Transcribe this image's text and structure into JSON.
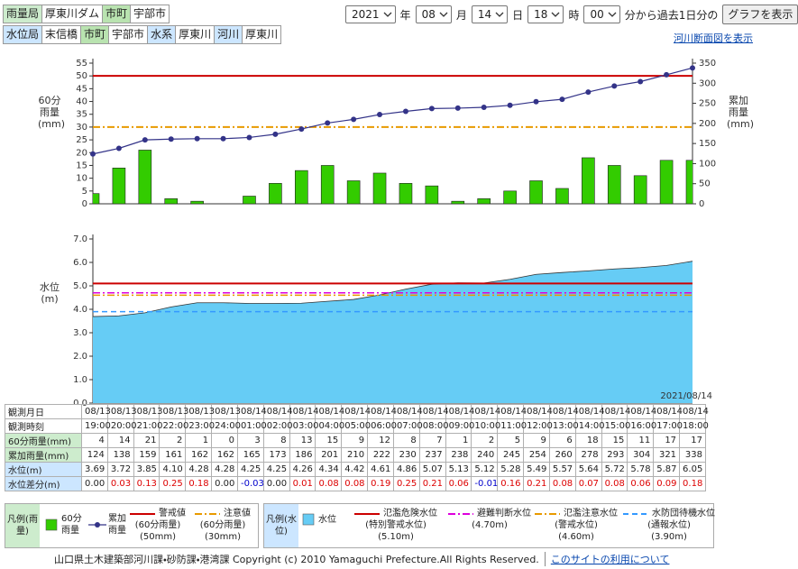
{
  "header": {
    "rain_station": [
      {
        "label": "雨量局",
        "value": "厚東川ダム",
        "color": "#cdeccd"
      },
      {
        "label": "市町",
        "value": "宇部市",
        "color": "#b9e3b0"
      }
    ],
    "water_station": [
      {
        "label": "水位局",
        "value": "末信橋",
        "color": "#cce6ff"
      },
      {
        "label": "市町",
        "value": "宇部市",
        "color": "#b9e3b0"
      },
      {
        "label": "水系",
        "value": "厚東川",
        "color": "#cce6ff"
      },
      {
        "label": "河川",
        "value": "厚東川",
        "color": "#cce6ff"
      }
    ],
    "selectors": [
      {
        "value": "2021",
        "unit": "年"
      },
      {
        "value": "08",
        "unit": "月"
      },
      {
        "value": "14",
        "unit": "日"
      },
      {
        "value": "18",
        "unit": "時"
      },
      {
        "value": "00",
        "unit": "分から過去1日分の"
      }
    ],
    "button": "グラフを表示",
    "link": "河川断面図を表示"
  },
  "chart_data": [
    {
      "type": "combo",
      "ylabel": "60分雨量(mm)",
      "y2label": "累加雨量(mm)",
      "ylim": [
        0,
        55
      ],
      "yticks": [
        0,
        5,
        10,
        15,
        20,
        25,
        30,
        35,
        40,
        45,
        50,
        55
      ],
      "y2lim": [
        0,
        350
      ],
      "y2ticks": [
        0,
        50,
        100,
        150,
        200,
        250,
        300,
        350
      ],
      "series": [
        {
          "name": "60分雨量",
          "type": "bar",
          "color": "#33cc00",
          "values": [
            4,
            14,
            21,
            2,
            1,
            0,
            3,
            8,
            13,
            15,
            9,
            12,
            8,
            7,
            1,
            2,
            5,
            9,
            6,
            18,
            15,
            11,
            17,
            17
          ]
        },
        {
          "name": "累加雨量",
          "type": "line",
          "axis": "y2",
          "color": "#333388",
          "values": [
            124,
            138,
            159,
            161,
            162,
            162,
            165,
            173,
            186,
            201,
            210,
            222,
            230,
            237,
            238,
            240,
            245,
            254,
            260,
            278,
            293,
            304,
            321,
            338
          ]
        }
      ],
      "thresholds": [
        {
          "name": "警戒値",
          "note": "(60分雨量)",
          "value": 50,
          "value_label": "(50mm)",
          "color": "#cc0000",
          "dash": "solid"
        },
        {
          "name": "注意値",
          "note": "(60分雨量)",
          "value": 30,
          "value_label": "(30mm)",
          "color": "#e89a00",
          "dash": "dashdot"
        }
      ],
      "legend_title": "凡例(雨量)",
      "legend_color": "#cdeccd"
    },
    {
      "type": "area",
      "ylabel": "水位(m)",
      "date_label": "2021/08/14",
      "ylim": [
        0,
        7
      ],
      "yticks": [
        {
          "value": 0,
          "label": "0.0"
        },
        {
          "value": 1,
          "label": "1.0"
        },
        {
          "value": 2,
          "label": "2.0"
        },
        {
          "value": 3,
          "label": "3.0"
        },
        {
          "value": 4,
          "label": "4.0"
        },
        {
          "value": 5,
          "label": "5.0"
        },
        {
          "value": 6,
          "label": "6.0"
        },
        {
          "value": 7,
          "label": "7.0"
        }
      ],
      "series": [
        {
          "name": "水位",
          "type": "area",
          "color": "#66ccf5",
          "values": [
            3.69,
            3.72,
            3.85,
            4.1,
            4.28,
            4.28,
            4.25,
            4.25,
            4.26,
            4.34,
            4.42,
            4.61,
            4.86,
            5.07,
            5.13,
            5.12,
            5.28,
            5.49,
            5.57,
            5.64,
            5.72,
            5.78,
            5.87,
            6.05
          ]
        }
      ],
      "thresholds": [
        {
          "name": "氾濫危険水位",
          "note": "(特別警戒水位)",
          "value": 5.1,
          "value_label": "(5.10m)",
          "color": "#cc0000",
          "dash": "solid"
        },
        {
          "name": "避難判断水位",
          "value": 4.7,
          "value_label": "(4.70m)",
          "color": "#dd00dd",
          "dash": "dashdot"
        },
        {
          "name": "氾濫注意水位",
          "note": "(警戒水位)",
          "value": 4.6,
          "value_label": "(4.60m)",
          "color": "#e89a00",
          "dash": "dashdot"
        },
        {
          "name": "水防団待機水位",
          "note": "(通報水位)",
          "value": 3.9,
          "value_label": "(3.90m)",
          "color": "#3399ff",
          "dash": "dash"
        }
      ],
      "legend_title": "凡例(水位)",
      "legend_color": "#cce6ff"
    }
  ],
  "table": {
    "rows": [
      {
        "label": "観測月日",
        "background": "#ffffff",
        "cells": [
          "08/13",
          "08/13",
          "08/13",
          "08/13",
          "08/13",
          "08/13",
          "08/14",
          "08/14",
          "08/14",
          "08/14",
          "08/14",
          "08/14",
          "08/14",
          "08/14",
          "08/14",
          "08/14",
          "08/14",
          "08/14",
          "08/14",
          "08/14",
          "08/14",
          "08/14",
          "08/14",
          "08/14"
        ]
      },
      {
        "label": "観測時刻",
        "background": "#ffffff",
        "cells": [
          "19:00",
          "20:00",
          "21:00",
          "22:00",
          "23:00",
          "24:00",
          "01:00",
          "02:00",
          "03:00",
          "04:00",
          "05:00",
          "06:00",
          "07:00",
          "08:00",
          "09:00",
          "10:00",
          "11:00",
          "12:00",
          "13:00",
          "14:00",
          "15:00",
          "16:00",
          "17:00",
          "18:00"
        ]
      },
      {
        "label": "60分雨量(mm)",
        "background": "#cdeccd",
        "cells": [
          "4",
          "14",
          "21",
          "2",
          "1",
          "0",
          "3",
          "8",
          "13",
          "15",
          "9",
          "12",
          "8",
          "7",
          "1",
          "2",
          "5",
          "9",
          "6",
          "18",
          "15",
          "11",
          "17",
          "17"
        ]
      },
      {
        "label": "累加雨量(mm)",
        "background": "#cdeccd",
        "cells": [
          "124",
          "138",
          "159",
          "161",
          "162",
          "162",
          "165",
          "173",
          "186",
          "201",
          "210",
          "222",
          "230",
          "237",
          "238",
          "240",
          "245",
          "254",
          "260",
          "278",
          "293",
          "304",
          "321",
          "338"
        ]
      },
      {
        "label": "水位(m)",
        "background": "#cce6ff",
        "cells": [
          "3.69",
          "3.72",
          "3.85",
          "4.10",
          "4.28",
          "4.28",
          "4.25",
          "4.25",
          "4.26",
          "4.34",
          "4.42",
          "4.61",
          "4.86",
          "5.07",
          "5.13",
          "5.12",
          "5.28",
          "5.49",
          "5.57",
          "5.64",
          "5.72",
          "5.78",
          "5.87",
          "6.05"
        ]
      },
      {
        "label": "水位差分(m)",
        "background": "#cce6ff",
        "positive_color": "#dd0000",
        "negative_color": "#0000cc",
        "cells": [
          "0.00",
          "0.03",
          "0.13",
          "0.25",
          "0.18",
          "0.00",
          "-0.03",
          "0.00",
          "0.01",
          "0.08",
          "0.08",
          "0.19",
          "0.25",
          "0.21",
          "0.06",
          "-0.01",
          "0.16",
          "0.21",
          "0.08",
          "0.07",
          "0.08",
          "0.06",
          "0.09",
          "0.18"
        ]
      }
    ]
  },
  "footer": {
    "copyright": "山口県土木建築部河川課・砂防課・港湾課 Copyright (c) 2010 Yamaguchi Prefecture.All Rights Reserved.",
    "link": "このサイトの利用について"
  }
}
